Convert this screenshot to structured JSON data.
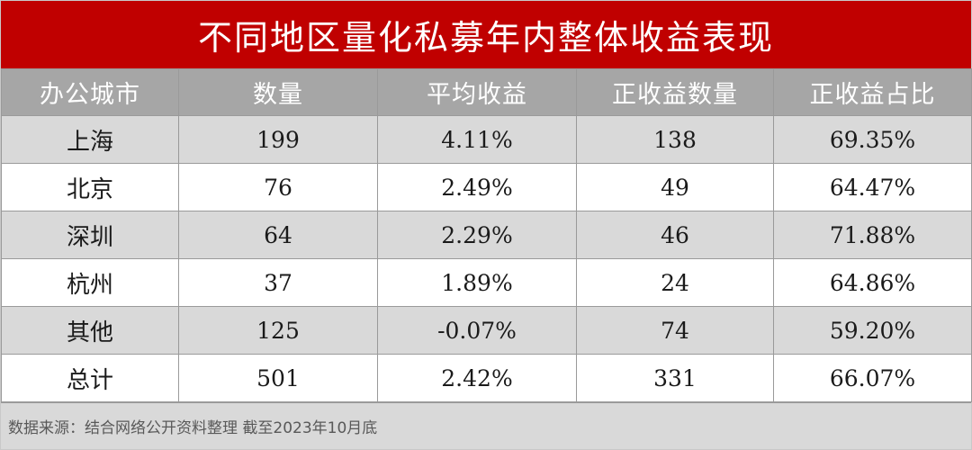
{
  "chart_data": {
    "type": "table",
    "title": "不同地区量化私募年内整体收益表现",
    "columns": [
      "办公城市",
      "数量",
      "平均收益",
      "正收益数量",
      "正收益占比"
    ],
    "rows": [
      [
        "上海",
        "199",
        "4.11%",
        "138",
        "69.35%"
      ],
      [
        "北京",
        "76",
        "2.49%",
        "49",
        "64.47%"
      ],
      [
        "深圳",
        "64",
        "2.29%",
        "46",
        "71.88%"
      ],
      [
        "杭州",
        "37",
        "1.89%",
        "24",
        "64.86%"
      ],
      [
        "其他",
        "125",
        "-0.07%",
        "74",
        "59.20%"
      ],
      [
        "总计",
        "501",
        "2.42%",
        "331",
        "66.07%"
      ]
    ],
    "source": "数据来源：结合网络公开资料整理 截至2023年10月底"
  },
  "colors": {
    "title_bg": "#c00000",
    "header_bg": "#a6a6a6",
    "row_shade": "#d9d9d9",
    "row_plain": "#ffffff"
  }
}
